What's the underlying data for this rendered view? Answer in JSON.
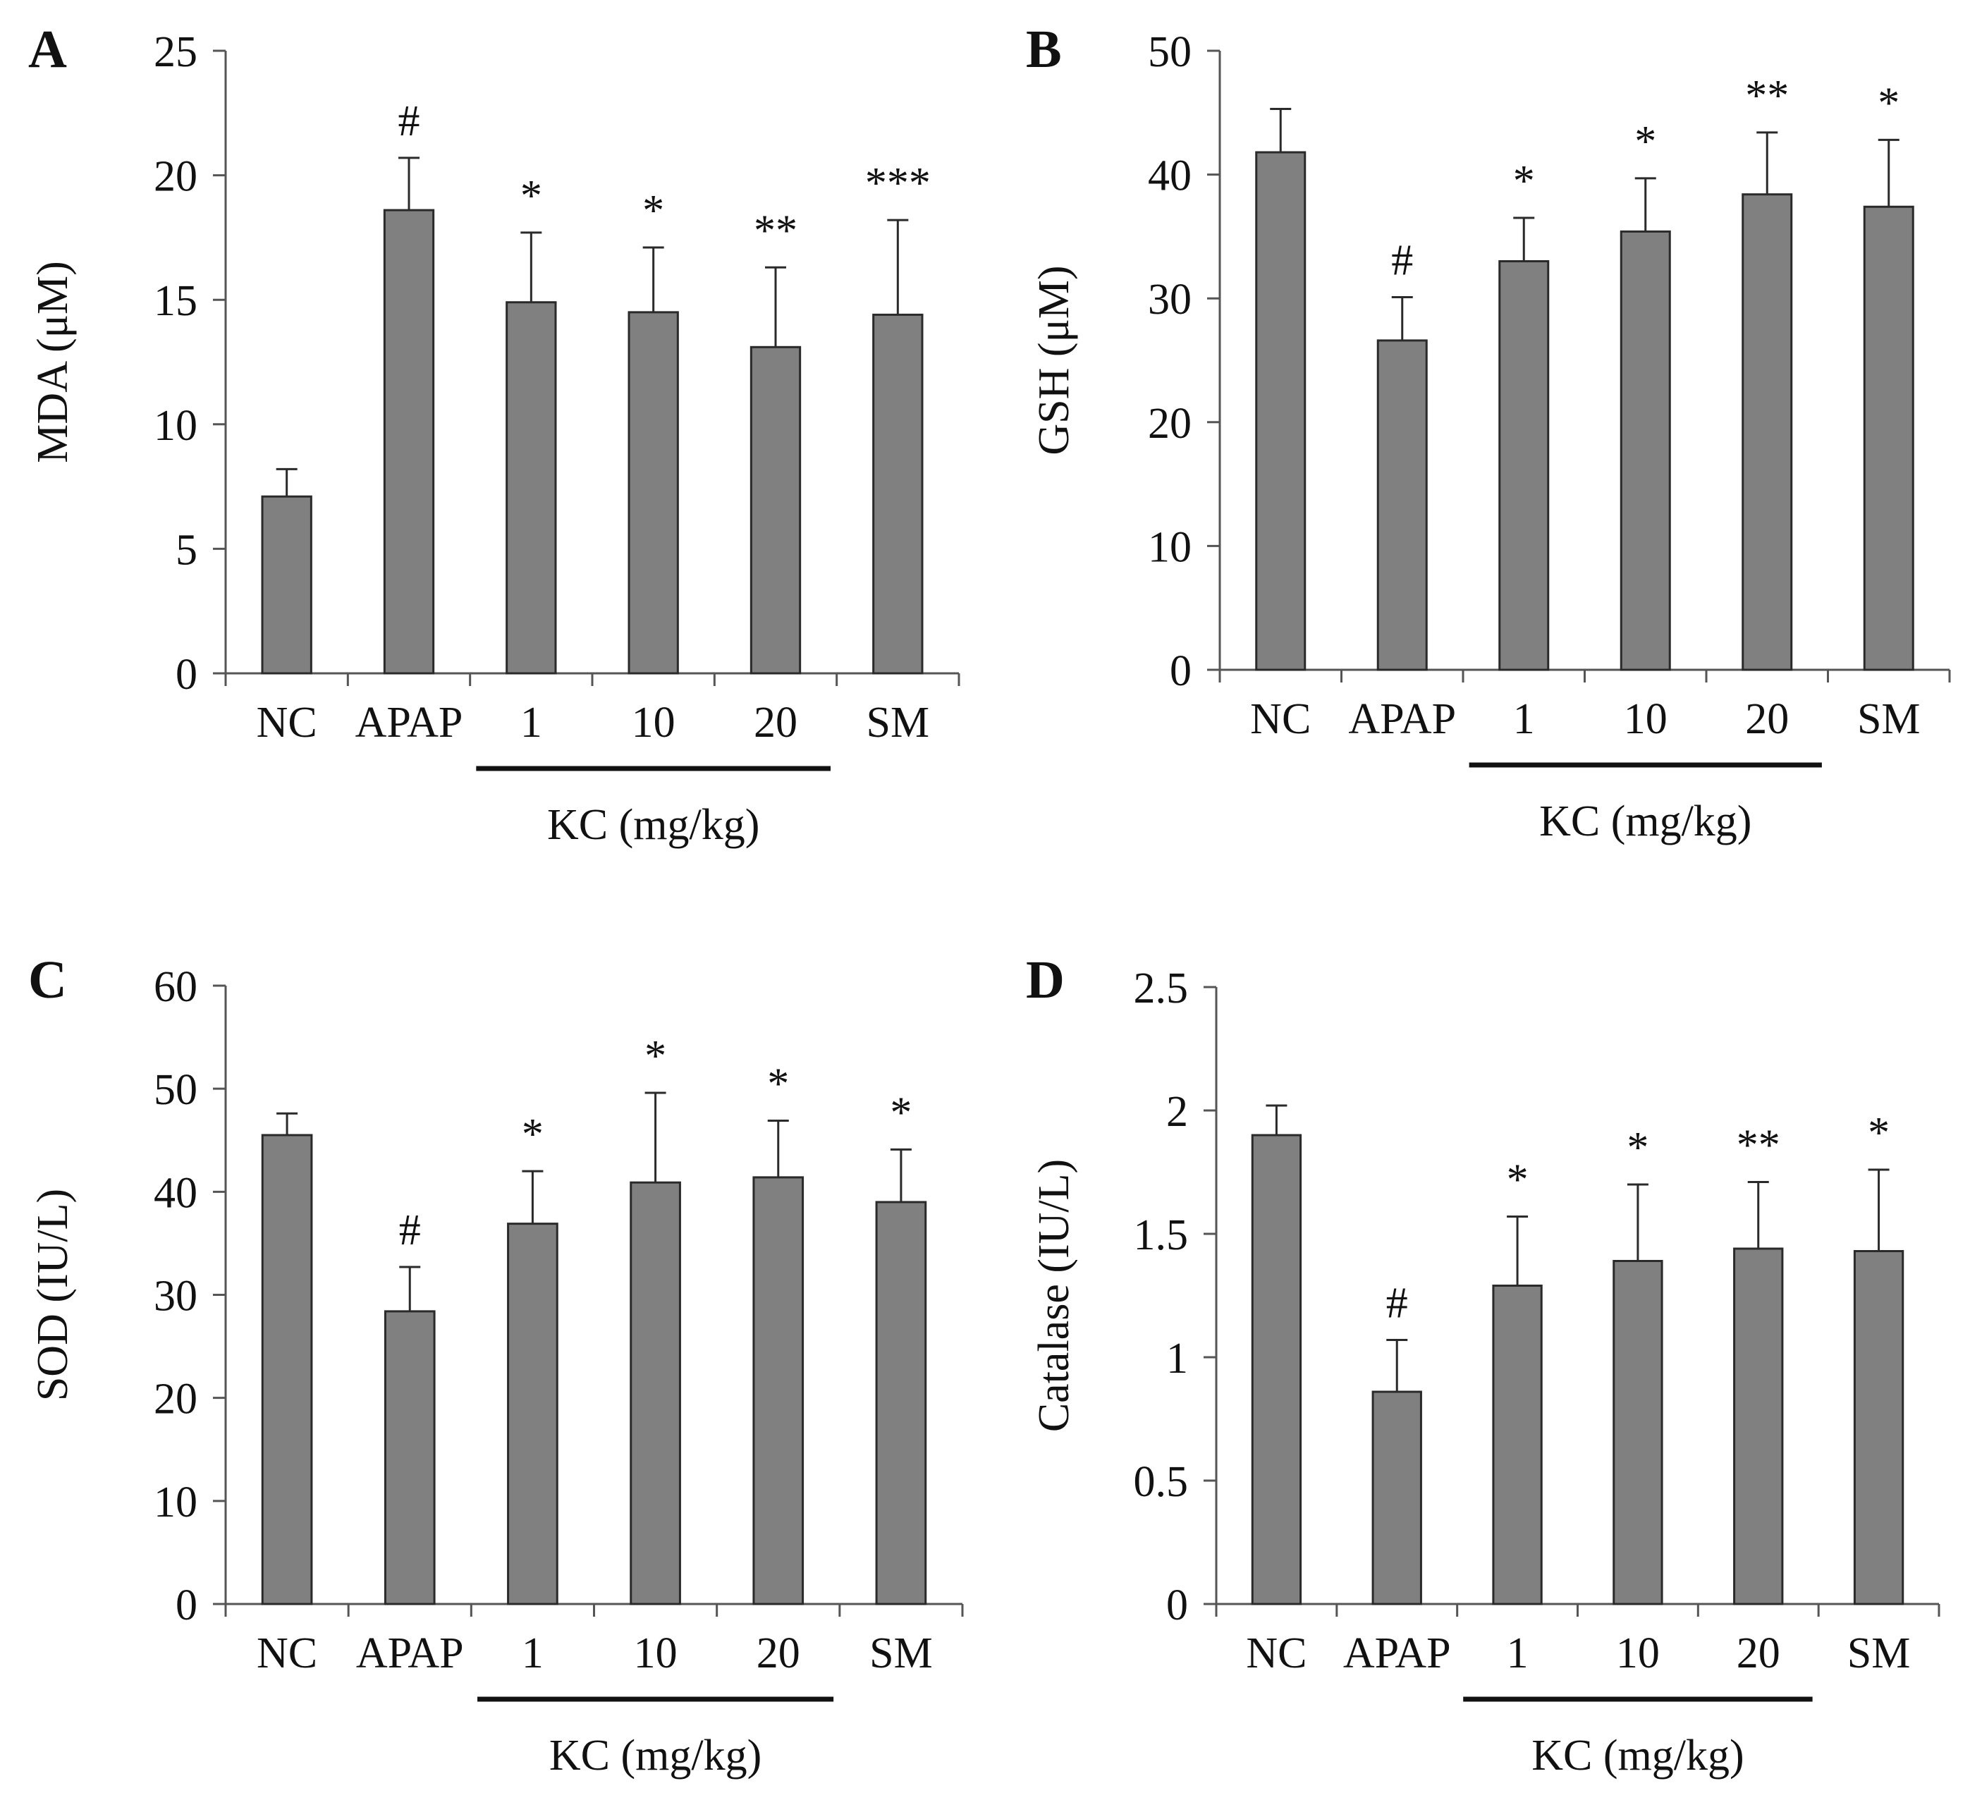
{
  "figure": {
    "description_panels": [
      "A",
      "B",
      "C",
      "D"
    ]
  },
  "chart_data": [
    {
      "type": "bar",
      "panel": "A",
      "ylabel": "MDA (μM)",
      "categories": [
        "NC",
        "APAP",
        "1",
        "10",
        "20",
        "SM"
      ],
      "values": [
        7.1,
        18.6,
        14.9,
        14.5,
        13.1,
        14.4
      ],
      "errors": [
        1.1,
        2.1,
        2.8,
        2.6,
        3.2,
        3.8
      ],
      "significance": [
        "",
        "#",
        "*",
        "*",
        "**",
        "***"
      ],
      "ylim": [
        0,
        25
      ],
      "yticks": [
        "0",
        "5",
        "10",
        "15",
        "20",
        "25"
      ],
      "group_bracket": {
        "label": "KC (mg/kg)",
        "categories": [
          "1",
          "10",
          "20"
        ]
      }
    },
    {
      "type": "bar",
      "panel": "B",
      "ylabel": "GSH (μM)",
      "categories": [
        "NC",
        "APAP",
        "1",
        "10",
        "20",
        "SM"
      ],
      "values": [
        41.8,
        26.6,
        33.0,
        35.4,
        38.4,
        37.4
      ],
      "errors": [
        3.5,
        3.5,
        3.5,
        4.3,
        5.0,
        5.4
      ],
      "significance": [
        "",
        "#",
        "*",
        "*",
        "**",
        "*"
      ],
      "ylim": [
        0,
        50
      ],
      "yticks": [
        "0",
        "10",
        "20",
        "30",
        "40",
        "50"
      ],
      "group_bracket": {
        "label": "KC (mg/kg)",
        "categories": [
          "1",
          "10",
          "20"
        ]
      }
    },
    {
      "type": "bar",
      "panel": "C",
      "ylabel": "SOD (IU/L)",
      "categories": [
        "NC",
        "APAP",
        "1",
        "10",
        "20",
        "SM"
      ],
      "values": [
        45.5,
        28.4,
        36.9,
        40.9,
        41.4,
        39.0
      ],
      "errors": [
        2.1,
        4.3,
        5.1,
        8.7,
        5.5,
        5.1
      ],
      "significance": [
        "",
        "#",
        "*",
        "*",
        "*",
        "*"
      ],
      "ylim": [
        0,
        60
      ],
      "yticks": [
        "0",
        "10",
        "20",
        "30",
        "40",
        "50",
        "60"
      ],
      "group_bracket": {
        "label": "KC (mg/kg)",
        "categories": [
          "1",
          "10",
          "20"
        ]
      }
    },
    {
      "type": "bar",
      "panel": "D",
      "ylabel": "Catalase (IU/L)",
      "categories": [
        "NC",
        "APAP",
        "1",
        "10",
        "20",
        "SM"
      ],
      "values": [
        1.9,
        0.86,
        1.29,
        1.39,
        1.44,
        1.43
      ],
      "errors": [
        0.12,
        0.21,
        0.28,
        0.31,
        0.27,
        0.33
      ],
      "significance": [
        "",
        "#",
        "*",
        "*",
        "**",
        "*"
      ],
      "ylim": [
        0,
        2.5
      ],
      "yticks": [
        "0",
        "0.5",
        "1",
        "1.5",
        "2",
        "2.5"
      ],
      "group_bracket": {
        "label": "KC (mg/kg)",
        "categories": [
          "1",
          "10",
          "20"
        ]
      }
    }
  ],
  "colors": {
    "bar_fill": "#808080",
    "bar_stroke": "#2a2a2a",
    "axis": "#555555",
    "text": "#111111"
  }
}
